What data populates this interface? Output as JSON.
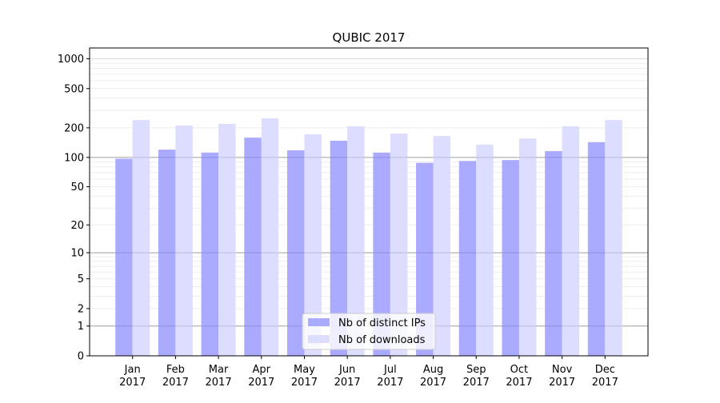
{
  "chart_data": {
    "type": "bar",
    "title": "QUBIC 2017",
    "xlabel": "",
    "ylabel": "",
    "yscale": "log(1+y)",
    "ylim": [
      0,
      1300
    ],
    "yticks": [
      0,
      1,
      2,
      5,
      10,
      20,
      50,
      100,
      200,
      500,
      1000
    ],
    "grid": true,
    "legend_position": "bottom-center",
    "categories": [
      "Jan\n2017",
      "Feb\n2017",
      "Mar\n2017",
      "Apr\n2017",
      "May\n2017",
      "Jun\n2017",
      "Jul\n2017",
      "Aug\n2017",
      "Sep\n2017",
      "Oct\n2017",
      "Nov\n2017",
      "Dec\n2017"
    ],
    "series": [
      {
        "name": "Nb of distinct IPs",
        "color": "#aaaaff",
        "values": [
          97,
          120,
          112,
          159,
          118,
          148,
          112,
          88,
          92,
          94,
          116,
          143
        ]
      },
      {
        "name": "Nb of downloads",
        "color": "#ddddff",
        "values": [
          240,
          211,
          219,
          250,
          172,
          207,
          175,
          165,
          135,
          156,
          207,
          240
        ]
      }
    ]
  }
}
